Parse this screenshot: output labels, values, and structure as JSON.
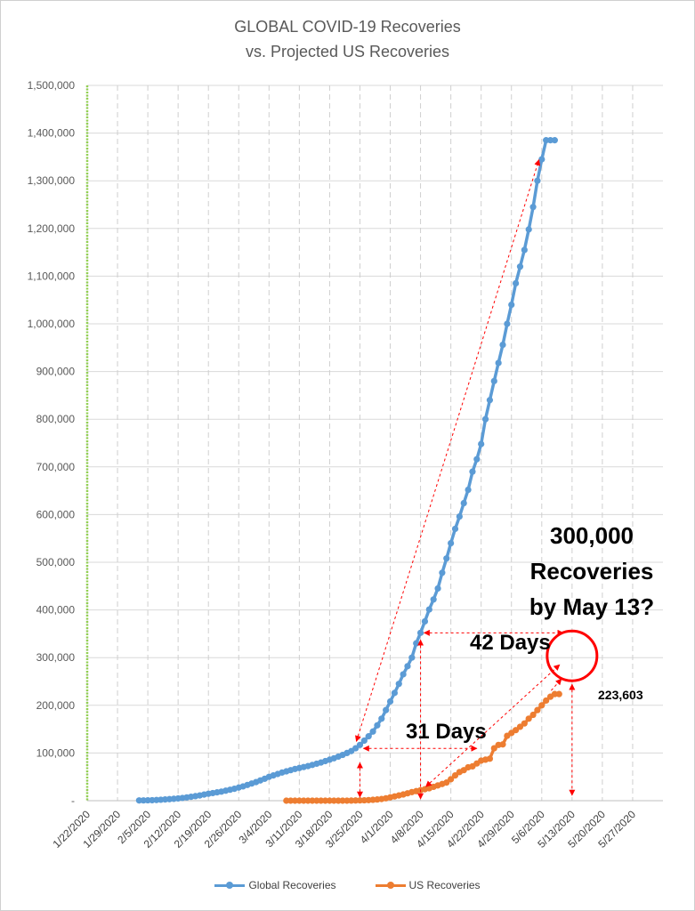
{
  "chart_data": {
    "type": "line",
    "title": "GLOBAL COVID-19 Recoveries",
    "subtitle": "vs. Projected US Recoveries",
    "xlabel": "",
    "ylabel": "",
    "ylim": [
      0,
      1500000
    ],
    "y_ticks": [
      "-",
      "100,000",
      "200,000",
      "300,000",
      "400,000",
      "500,000",
      "600,000",
      "700,000",
      "800,000",
      "900,000",
      "1,000,000",
      "1,100,000",
      "1,200,000",
      "1,300,000",
      "1,400,000",
      "1,500,000"
    ],
    "x_ticks": [
      "1/22/2020",
      "1/29/2020",
      "2/5/2020",
      "2/12/2020",
      "2/19/2020",
      "2/26/2020",
      "3/4/2020",
      "3/11/2020",
      "3/18/2020",
      "3/25/2020",
      "4/1/2020",
      "4/8/2020",
      "4/15/2020",
      "4/22/2020",
      "4/29/2020",
      "5/6/2020",
      "5/13/2020",
      "5/20/2020",
      "5/27/2020"
    ],
    "grid": true,
    "legend_position": "bottom",
    "series": [
      {
        "name": "Global Recoveries",
        "color": "#5B9BD5",
        "dates": [
          "2/3/2020",
          "2/4/2020",
          "2/5/2020",
          "2/6/2020",
          "2/7/2020",
          "2/8/2020",
          "2/9/2020",
          "2/10/2020",
          "2/11/2020",
          "2/12/2020",
          "2/13/2020",
          "2/14/2020",
          "2/15/2020",
          "2/16/2020",
          "2/17/2020",
          "2/18/2020",
          "2/19/2020",
          "2/20/2020",
          "2/21/2020",
          "2/22/2020",
          "2/23/2020",
          "2/24/2020",
          "2/25/2020",
          "2/26/2020",
          "2/27/2020",
          "2/28/2020",
          "2/29/2020",
          "3/1/2020",
          "3/2/2020",
          "3/3/2020",
          "3/4/2020",
          "3/5/2020",
          "3/6/2020",
          "3/7/2020",
          "3/8/2020",
          "3/9/2020",
          "3/10/2020",
          "3/11/2020",
          "3/12/2020",
          "3/13/2020",
          "3/14/2020",
          "3/15/2020",
          "3/16/2020",
          "3/17/2020",
          "3/18/2020",
          "3/19/2020",
          "3/20/2020",
          "3/21/2020",
          "3/22/2020",
          "3/23/2020",
          "3/24/2020",
          "3/25/2020",
          "3/26/2020",
          "3/27/2020",
          "3/28/2020",
          "3/29/2020",
          "3/30/2020",
          "3/31/2020",
          "4/1/2020",
          "4/2/2020",
          "4/3/2020",
          "4/4/2020",
          "4/5/2020",
          "4/6/2020",
          "4/7/2020",
          "4/8/2020",
          "4/9/2020",
          "4/10/2020",
          "4/11/2020",
          "4/12/2020",
          "4/13/2020",
          "4/14/2020",
          "4/15/2020",
          "4/16/2020",
          "4/17/2020",
          "4/18/2020",
          "4/19/2020",
          "4/20/2020",
          "4/21/2020",
          "4/22/2020",
          "4/23/2020",
          "4/24/2020",
          "4/25/2020",
          "4/26/2020",
          "4/27/2020",
          "4/28/2020",
          "4/29/2020",
          "4/30/2020",
          "5/1/2020",
          "5/2/2020",
          "5/3/2020",
          "5/4/2020",
          "5/5/2020",
          "5/6/2020",
          "5/7/2020",
          "5/8/2020",
          "5/9/2020"
        ],
        "values": [
          500,
          600,
          800,
          1000,
          1400,
          2000,
          2600,
          3200,
          3900,
          4700,
          5700,
          6900,
          8200,
          9500,
          11000,
          12800,
          14500,
          16000,
          17500,
          19000,
          21000,
          23000,
          25000,
          27500,
          30000,
          33000,
          36000,
          39000,
          42500,
          46000,
          50000,
          53000,
          56000,
          59000,
          61500,
          64000,
          66500,
          68500,
          70500,
          72500,
          75000,
          77500,
          80000,
          83000,
          86000,
          89000,
          92500,
          96000,
          100000,
          104000,
          110000,
          117000,
          126000,
          135000,
          145000,
          158000,
          172000,
          190000,
          208000,
          226000,
          245000,
          265000,
          282000,
          300000,
          330000,
          352000,
          376000,
          401000,
          422000,
          445000,
          478000,
          508000,
          540000,
          570000,
          596000,
          624000,
          652000,
          690000,
          716000,
          748000,
          800000,
          840000,
          880000,
          918000,
          956000,
          1000000,
          1040000,
          1085000,
          1120000,
          1155000,
          1198000,
          1245000,
          1300000,
          1345000,
          1385000,
          1385000,
          1385000
        ]
      },
      {
        "name": "US Recoveries",
        "color": "#ED7D31",
        "dates": [
          "3/8/2020",
          "3/9/2020",
          "3/10/2020",
          "3/11/2020",
          "3/12/2020",
          "3/13/2020",
          "3/14/2020",
          "3/15/2020",
          "3/16/2020",
          "3/17/2020",
          "3/18/2020",
          "3/19/2020",
          "3/20/2020",
          "3/21/2020",
          "3/22/2020",
          "3/23/2020",
          "3/24/2020",
          "3/25/2020",
          "3/26/2020",
          "3/27/2020",
          "3/28/2020",
          "3/29/2020",
          "3/30/2020",
          "3/31/2020",
          "4/1/2020",
          "4/2/2020",
          "4/3/2020",
          "4/4/2020",
          "4/5/2020",
          "4/6/2020",
          "4/7/2020",
          "4/8/2020",
          "4/9/2020",
          "4/10/2020",
          "4/11/2020",
          "4/12/2020",
          "4/13/2020",
          "4/14/2020",
          "4/15/2020",
          "4/16/2020",
          "4/17/2020",
          "4/18/2020",
          "4/19/2020",
          "4/20/2020",
          "4/21/2020",
          "4/22/2020",
          "4/23/2020",
          "4/24/2020",
          "4/25/2020",
          "4/26/2020",
          "4/27/2020",
          "4/28/2020",
          "4/29/2020",
          "4/30/2020",
          "5/1/2020",
          "5/2/2020",
          "5/3/2020",
          "5/4/2020",
          "5/5/2020",
          "5/6/2020",
          "5/7/2020",
          "5/8/2020",
          "5/9/2020",
          "5/10/2020"
        ],
        "values": [
          0,
          0,
          0,
          0,
          0,
          0,
          0,
          0,
          0,
          0,
          0,
          0,
          0,
          0,
          0,
          200,
          400,
          600,
          800,
          1200,
          1800,
          2500,
          3500,
          5000,
          7000,
          9000,
          11000,
          13000,
          15500,
          18000,
          20000,
          22000,
          24000,
          26000,
          29000,
          32000,
          35000,
          38000,
          45000,
          53000,
          60000,
          64000,
          70000,
          72000,
          78000,
          84000,
          86000,
          88000,
          110000,
          117000,
          118000,
          136000,
          142000,
          148000,
          155000,
          162000,
          172000,
          180000,
          190000,
          200000,
          210000,
          218000,
          223603,
          223603
        ]
      }
    ],
    "annotations": {
      "big_label": [
        "300,000",
        "Recoveries",
        "by May 13?"
      ],
      "days_42": "42 Days",
      "days_31": "31 Days",
      "last_value_label": "223,603"
    }
  }
}
